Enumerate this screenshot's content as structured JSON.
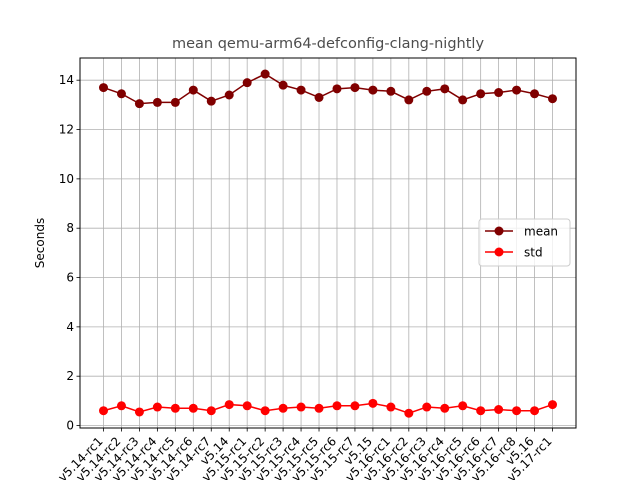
{
  "chart_data": {
    "type": "line",
    "title": "mean qemu-arm64-defconfig-clang-nightly",
    "xlabel": "",
    "ylabel": "Seconds",
    "categories": [
      "v5.14-rc1",
      "v5.14-rc2",
      "v5.14-rc3",
      "v5.14-rc4",
      "v5.14-rc5",
      "v5.14-rc6",
      "v5.14-rc7",
      "v5.14",
      "v5.15-rc1",
      "v5.15-rc2",
      "v5.15-rc3",
      "v5.15-rc4",
      "v5.15-rc5",
      "v5.15-rc6",
      "v5.15-rc7",
      "v5.15",
      "v5.16-rc1",
      "v5.16-rc2",
      "v5.16-rc3",
      "v5.16-rc4",
      "v5.16-rc5",
      "v5.16-rc6",
      "v5.16-rc7",
      "v5.16-rc8",
      "v5.16",
      "v5.17-rc1"
    ],
    "series": [
      {
        "name": "mean",
        "color": "#800000",
        "values": [
          13.7,
          13.45,
          13.05,
          13.1,
          13.1,
          13.6,
          13.15,
          13.4,
          13.9,
          14.25,
          13.8,
          13.6,
          13.3,
          13.65,
          13.7,
          13.6,
          13.55,
          13.2,
          13.55,
          13.65,
          13.2,
          13.45,
          13.5,
          13.6,
          13.45,
          13.25
        ]
      },
      {
        "name": "std",
        "color": "#ff0000",
        "values": [
          0.6,
          0.8,
          0.55,
          0.75,
          0.7,
          0.7,
          0.6,
          0.85,
          0.8,
          0.6,
          0.7,
          0.75,
          0.7,
          0.8,
          0.8,
          0.9,
          0.75,
          0.5,
          0.75,
          0.7,
          0.8,
          0.6,
          0.65,
          0.6,
          0.6,
          0.85
        ]
      }
    ],
    "ylim": [
      -0.1,
      14.9
    ],
    "yticks": [
      0,
      2,
      4,
      6,
      8,
      10,
      12,
      14
    ],
    "grid": true,
    "legend_position": "center-right"
  }
}
